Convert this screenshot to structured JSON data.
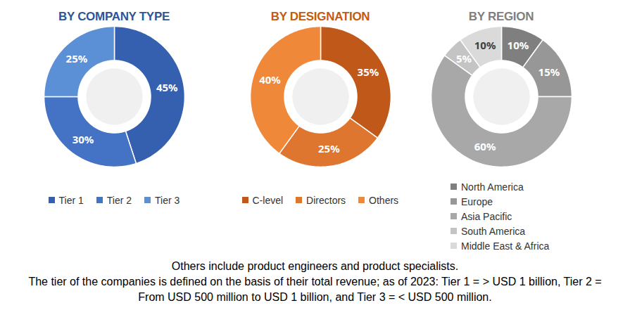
{
  "chart_data": [
    {
      "type": "donut",
      "title": "BY COMPANY TYPE",
      "categories": [
        "Tier 1",
        "Tier 2",
        "Tier 3"
      ],
      "values": [
        45,
        30,
        25
      ],
      "value_labels": [
        "45%",
        "30%",
        "25%"
      ],
      "colors": [
        "#3560b0",
        "#4472c4",
        "#5b8fd6"
      ],
      "data_labels": true,
      "legend": "bottom"
    },
    {
      "type": "donut",
      "title": "BY DESIGNATION",
      "categories": [
        "C-level",
        "Directors",
        "Others"
      ],
      "values": [
        35,
        25,
        40
      ],
      "value_labels": [
        "35%",
        "25%",
        "40%"
      ],
      "colors": [
        "#c0581a",
        "#de7630",
        "#f0883a"
      ],
      "data_labels": true,
      "legend": "bottom"
    },
    {
      "type": "donut",
      "title": "BY REGION",
      "categories": [
        "North America",
        "Europe",
        "Asia Pacific",
        "South America",
        "Middle East & Africa"
      ],
      "values": [
        10,
        15,
        60,
        5,
        10
      ],
      "value_labels": [
        "10%",
        "15%",
        "60%",
        "5%",
        "10%"
      ],
      "colors": [
        "#7f7f7f",
        "#979797",
        "#a8a8a8",
        "#c4c4c4",
        "#dadada"
      ],
      "data_labels": true,
      "legend": "bottom"
    }
  ],
  "footnotes": [
    "Others include product engineers and product specialists.",
    "The tier of the companies is defined on the basis of their total revenue; as of 2023: Tier 1 = > USD 1 billion, Tier 2 = From USD 500 million to USD 1 billion, and Tier 3 = < USD 500 million."
  ]
}
